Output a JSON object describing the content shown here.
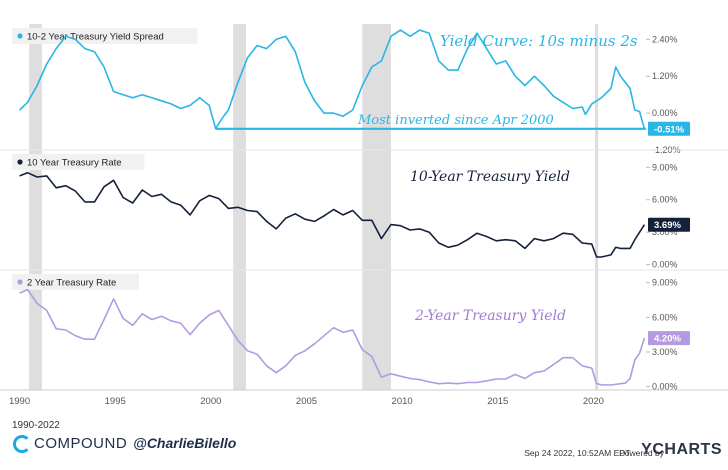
{
  "chart_data": {
    "type": "line",
    "x_ticks": [
      "1990",
      "1995",
      "2000",
      "2005",
      "2010",
      "2015",
      "2020"
    ],
    "date_range": "1990-2022",
    "recessions": [
      [
        "1990-07",
        "1991-03"
      ],
      [
        "2001-03",
        "2001-11"
      ],
      [
        "2007-12",
        "2009-06"
      ],
      [
        "2020-02",
        "2020-04"
      ]
    ],
    "panels": [
      {
        "name": "10-2 Year Treasury Yield Spread",
        "color": "#29b6e6",
        "ylim": [
          -1.2,
          2.9
        ],
        "ticks": [
          2.4,
          1.2,
          0.0,
          -1.2
        ],
        "tick_labels": [
          "2.40%",
          "1.20%",
          "0.00%",
          "-1.20%"
        ],
        "last_label": "-0.51%",
        "annotation": "Yield Curve: 10s minus 2s",
        "annotation_color": "#29b6e6",
        "callout": "Most inverted since Apr 2000",
        "callout_color": "#29b6e6",
        "callout_level": -0.51,
        "callout_start": "2000-04",
        "data": [
          [
            "1990-01",
            0.1
          ],
          [
            "1990-06",
            0.35
          ],
          [
            "1990-12",
            0.9
          ],
          [
            "1991-06",
            1.6
          ],
          [
            "1991-12",
            2.1
          ],
          [
            "1992-06",
            2.5
          ],
          [
            "1992-12",
            2.4
          ],
          [
            "1993-06",
            2.1
          ],
          [
            "1993-12",
            2.0
          ],
          [
            "1994-06",
            1.5
          ],
          [
            "1994-12",
            0.7
          ],
          [
            "1995-06",
            0.6
          ],
          [
            "1995-12",
            0.5
          ],
          [
            "1996-06",
            0.6
          ],
          [
            "1996-12",
            0.5
          ],
          [
            "1997-06",
            0.4
          ],
          [
            "1997-12",
            0.3
          ],
          [
            "1998-06",
            0.15
          ],
          [
            "1998-12",
            0.25
          ],
          [
            "1999-06",
            0.5
          ],
          [
            "1999-12",
            0.25
          ],
          [
            "2000-04",
            -0.5
          ],
          [
            "2000-09",
            -0.1
          ],
          [
            "2000-12",
            0.1
          ],
          [
            "2001-06",
            1.0
          ],
          [
            "2001-12",
            1.8
          ],
          [
            "2002-06",
            2.2
          ],
          [
            "2002-12",
            2.1
          ],
          [
            "2003-06",
            2.4
          ],
          [
            "2003-12",
            2.5
          ],
          [
            "2004-06",
            2.0
          ],
          [
            "2004-12",
            1.0
          ],
          [
            "2005-06",
            0.4
          ],
          [
            "2005-12",
            0.0
          ],
          [
            "2006-06",
            0.0
          ],
          [
            "2006-12",
            -0.1
          ],
          [
            "2007-06",
            0.1
          ],
          [
            "2007-12",
            0.9
          ],
          [
            "2008-06",
            1.5
          ],
          [
            "2008-12",
            1.7
          ],
          [
            "2009-06",
            2.5
          ],
          [
            "2009-12",
            2.7
          ],
          [
            "2010-06",
            2.5
          ],
          [
            "2010-12",
            2.7
          ],
          [
            "2011-06",
            2.6
          ],
          [
            "2011-12",
            1.7
          ],
          [
            "2012-06",
            1.4
          ],
          [
            "2012-12",
            1.4
          ],
          [
            "2013-06",
            2.1
          ],
          [
            "2013-12",
            2.6
          ],
          [
            "2014-06",
            2.1
          ],
          [
            "2014-12",
            1.6
          ],
          [
            "2015-06",
            1.7
          ],
          [
            "2015-12",
            1.2
          ],
          [
            "2016-06",
            0.9
          ],
          [
            "2016-12",
            1.2
          ],
          [
            "2017-06",
            0.9
          ],
          [
            "2017-12",
            0.55
          ],
          [
            "2018-06",
            0.35
          ],
          [
            "2018-12",
            0.15
          ],
          [
            "2019-06",
            0.2
          ],
          [
            "2019-08",
            -0.04
          ],
          [
            "2019-12",
            0.3
          ],
          [
            "2020-06",
            0.5
          ],
          [
            "2020-12",
            0.8
          ],
          [
            "2021-03",
            1.5
          ],
          [
            "2021-06",
            1.2
          ],
          [
            "2021-12",
            0.8
          ],
          [
            "2022-03",
            0.1
          ],
          [
            "2022-06",
            0.05
          ],
          [
            "2022-09",
            -0.51
          ]
        ]
      },
      {
        "name": "10 Year Treasury Rate",
        "color": "#15213b",
        "ylim": [
          -0.5,
          10.6
        ],
        "ticks": [
          9,
          6,
          3,
          0
        ],
        "tick_labels": [
          "9.00%",
          "6.00%",
          "3.00%",
          "0.00%"
        ],
        "last_label": "3.69%",
        "annotation": "10-Year Treasury Yield",
        "annotation_color": "#15213b",
        "data": [
          [
            "1990-01",
            8.2
          ],
          [
            "1990-06",
            8.5
          ],
          [
            "1990-12",
            8.1
          ],
          [
            "1991-06",
            8.2
          ],
          [
            "1991-12",
            7.1
          ],
          [
            "1992-06",
            7.3
          ],
          [
            "1992-12",
            6.8
          ],
          [
            "1993-06",
            5.8
          ],
          [
            "1993-12",
            5.8
          ],
          [
            "1994-06",
            7.2
          ],
          [
            "1994-12",
            7.8
          ],
          [
            "1995-06",
            6.2
          ],
          [
            "1995-12",
            5.7
          ],
          [
            "1996-06",
            6.9
          ],
          [
            "1996-12",
            6.3
          ],
          [
            "1997-06",
            6.5
          ],
          [
            "1997-12",
            5.8
          ],
          [
            "1998-06",
            5.5
          ],
          [
            "1998-12",
            4.6
          ],
          [
            "1999-06",
            5.9
          ],
          [
            "1999-12",
            6.4
          ],
          [
            "2000-06",
            6.1
          ],
          [
            "2000-12",
            5.2
          ],
          [
            "2001-06",
            5.3
          ],
          [
            "2001-12",
            5.0
          ],
          [
            "2002-06",
            4.9
          ],
          [
            "2002-12",
            4.0
          ],
          [
            "2003-06",
            3.3
          ],
          [
            "2003-12",
            4.3
          ],
          [
            "2004-06",
            4.7
          ],
          [
            "2004-12",
            4.2
          ],
          [
            "2005-06",
            4.0
          ],
          [
            "2005-12",
            4.5
          ],
          [
            "2006-06",
            5.1
          ],
          [
            "2006-12",
            4.6
          ],
          [
            "2007-06",
            5.0
          ],
          [
            "2007-12",
            4.1
          ],
          [
            "2008-06",
            4.1
          ],
          [
            "2008-12",
            2.4
          ],
          [
            "2009-06",
            3.7
          ],
          [
            "2009-12",
            3.6
          ],
          [
            "2010-06",
            3.2
          ],
          [
            "2010-12",
            3.3
          ],
          [
            "2011-06",
            3.0
          ],
          [
            "2011-12",
            2.0
          ],
          [
            "2012-06",
            1.6
          ],
          [
            "2012-12",
            1.8
          ],
          [
            "2013-06",
            2.3
          ],
          [
            "2013-12",
            2.9
          ],
          [
            "2014-06",
            2.6
          ],
          [
            "2014-12",
            2.2
          ],
          [
            "2015-06",
            2.3
          ],
          [
            "2015-12",
            2.2
          ],
          [
            "2016-06",
            1.5
          ],
          [
            "2016-12",
            2.4
          ],
          [
            "2017-06",
            2.2
          ],
          [
            "2017-12",
            2.4
          ],
          [
            "2018-06",
            2.9
          ],
          [
            "2018-12",
            2.8
          ],
          [
            "2019-06",
            2.0
          ],
          [
            "2019-12",
            1.9
          ],
          [
            "2020-03",
            0.7
          ],
          [
            "2020-06",
            0.7
          ],
          [
            "2020-12",
            0.9
          ],
          [
            "2021-03",
            1.6
          ],
          [
            "2021-06",
            1.5
          ],
          [
            "2021-12",
            1.5
          ],
          [
            "2022-03",
            2.3
          ],
          [
            "2022-06",
            3.0
          ],
          [
            "2022-09",
            3.69
          ]
        ]
      },
      {
        "name": "2 Year Treasury Rate",
        "color": "#b49ae0",
        "ylim": [
          -0.3,
          10.1
        ],
        "ticks": [
          9,
          6,
          3,
          0
        ],
        "tick_labels": [
          "9.00%",
          "6.00%",
          "3.00%",
          "0.00%"
        ],
        "last_label": "4.20%",
        "annotation": "2-Year Treasury Yield",
        "annotation_color": "#a07ad6",
        "data": [
          [
            "1990-01",
            8.1
          ],
          [
            "1990-06",
            8.4
          ],
          [
            "1990-12",
            7.2
          ],
          [
            "1991-06",
            6.6
          ],
          [
            "1991-12",
            5.0
          ],
          [
            "1992-06",
            4.9
          ],
          [
            "1992-12",
            4.4
          ],
          [
            "1993-06",
            4.1
          ],
          [
            "1993-12",
            4.1
          ],
          [
            "1994-06",
            5.8
          ],
          [
            "1994-12",
            7.6
          ],
          [
            "1995-06",
            5.9
          ],
          [
            "1995-12",
            5.3
          ],
          [
            "1996-06",
            6.3
          ],
          [
            "1996-12",
            5.8
          ],
          [
            "1997-06",
            6.1
          ],
          [
            "1997-12",
            5.7
          ],
          [
            "1998-06",
            5.5
          ],
          [
            "1998-12",
            4.5
          ],
          [
            "1999-06",
            5.5
          ],
          [
            "1999-12",
            6.2
          ],
          [
            "2000-06",
            6.6
          ],
          [
            "2000-12",
            5.3
          ],
          [
            "2001-06",
            4.0
          ],
          [
            "2001-12",
            3.1
          ],
          [
            "2002-06",
            2.8
          ],
          [
            "2002-12",
            1.8
          ],
          [
            "2003-06",
            1.2
          ],
          [
            "2003-12",
            1.8
          ],
          [
            "2004-06",
            2.7
          ],
          [
            "2004-12",
            3.1
          ],
          [
            "2005-06",
            3.7
          ],
          [
            "2005-12",
            4.4
          ],
          [
            "2006-06",
            5.1
          ],
          [
            "2006-12",
            4.7
          ],
          [
            "2007-06",
            4.9
          ],
          [
            "2007-12",
            3.2
          ],
          [
            "2008-06",
            2.6
          ],
          [
            "2008-12",
            0.8
          ],
          [
            "2009-06",
            1.1
          ],
          [
            "2009-12",
            0.9
          ],
          [
            "2010-06",
            0.7
          ],
          [
            "2010-12",
            0.6
          ],
          [
            "2011-06",
            0.4
          ],
          [
            "2011-12",
            0.25
          ],
          [
            "2012-06",
            0.3
          ],
          [
            "2012-12",
            0.25
          ],
          [
            "2013-06",
            0.35
          ],
          [
            "2013-12",
            0.35
          ],
          [
            "2014-06",
            0.5
          ],
          [
            "2014-12",
            0.65
          ],
          [
            "2015-06",
            0.65
          ],
          [
            "2015-12",
            1.05
          ],
          [
            "2016-06",
            0.7
          ],
          [
            "2016-12",
            1.2
          ],
          [
            "2017-06",
            1.35
          ],
          [
            "2017-12",
            1.9
          ],
          [
            "2018-06",
            2.5
          ],
          [
            "2018-12",
            2.5
          ],
          [
            "2019-06",
            1.8
          ],
          [
            "2019-12",
            1.6
          ],
          [
            "2020-03",
            0.25
          ],
          [
            "2020-06",
            0.15
          ],
          [
            "2020-12",
            0.13
          ],
          [
            "2021-06",
            0.25
          ],
          [
            "2021-09",
            0.3
          ],
          [
            "2021-12",
            0.7
          ],
          [
            "2022-03",
            2.3
          ],
          [
            "2022-06",
            2.9
          ],
          [
            "2022-09",
            4.2
          ]
        ]
      }
    ]
  },
  "footer": {
    "range": "1990-2022",
    "brand": "COMPOUND",
    "handle": "@CharlieBilello",
    "timestamp": "Sep 24 2022, 10:52AM EDT.",
    "powered_by": "Powered by",
    "provider": "YCHARTS"
  }
}
